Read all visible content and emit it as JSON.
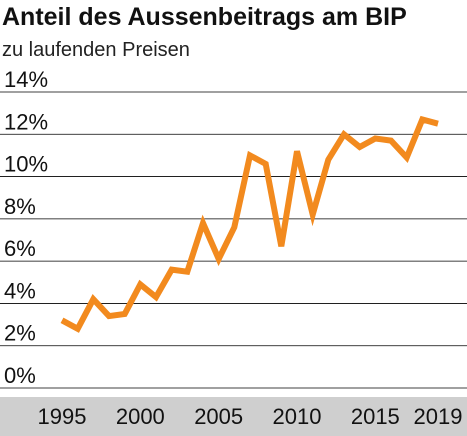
{
  "chart_data": {
    "type": "line",
    "title": "Anteil des Aussenbeitrags am BIP",
    "subtitle": "zu laufenden Preisen",
    "xlabel": "",
    "ylabel": "",
    "y_unit": "%",
    "ylim": [
      0,
      14
    ],
    "y_ticks": [
      0,
      2,
      4,
      6,
      8,
      10,
      12,
      14
    ],
    "y_tick_labels": [
      "0%",
      "2%",
      "4%",
      "6%",
      "8%",
      "10%",
      "12%",
      "14%"
    ],
    "xlim": [
      1994.3,
      2020.3
    ],
    "x_tick_values": [
      1995,
      2000,
      2005,
      2010,
      2015,
      2019
    ],
    "x_tick_labels": [
      "1995",
      "2000",
      "2005",
      "2010",
      "2015",
      "2019"
    ],
    "grid": true,
    "legend": "none",
    "series": [
      {
        "x": [
          1995,
          1996,
          1997,
          1998,
          1999,
          2000,
          2001,
          2002,
          2003,
          2004,
          2005,
          2006,
          2007,
          2008,
          2009,
          2010,
          2011,
          2012,
          2013,
          2014,
          2015,
          2016,
          2017,
          2018,
          2019
        ],
        "values": [
          3.2,
          2.8,
          4.2,
          3.4,
          3.5,
          4.9,
          4.3,
          5.6,
          5.5,
          7.8,
          6.1,
          7.6,
          11.0,
          10.6,
          6.7,
          11.2,
          8.2,
          10.8,
          12.0,
          11.4,
          11.8,
          11.7,
          10.9,
          12.7,
          12.5
        ],
        "color": "#f28a1e"
      }
    ],
    "colors": {
      "line": "#f28a1e",
      "grid": "#000000",
      "x_axis_band": "#cfcfcf"
    }
  }
}
